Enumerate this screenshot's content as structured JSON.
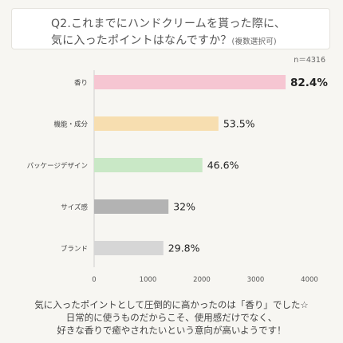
{
  "title": {
    "line1": "Q2.これまでにハンドクリームを貰った際に、",
    "line2": "気に入ったポイントはなんですか？",
    "note": "(複数選択可)"
  },
  "sample_size": "n＝4316",
  "footer": {
    "line1": "気に入ったポイントとして圧倒的に高かったのは「香り」でした☆",
    "line2": "日常的に使うものだからこそ、使用感だけでなく、",
    "line3": "好きな香りで癒やされたいという意向が高いようです！"
  },
  "chart_data": {
    "type": "bar",
    "orientation": "horizontal",
    "categories": [
      "香り",
      "機能・成分",
      "パッケージデザイン",
      "サイズ感",
      "ブランド"
    ],
    "values": [
      3556,
      2309,
      2011,
      1381,
      1286
    ],
    "value_labels": [
      "82.4%",
      "53.5%",
      "46.6%",
      "32%",
      "29.8%"
    ],
    "colors": [
      "#f6c6d2",
      "#f7deb0",
      "#c9e8c6",
      "#b3b3b3",
      "#d6d6d6"
    ],
    "xlim": [
      0,
      4000
    ],
    "xticks": [
      0,
      1000,
      2000,
      3000,
      4000
    ],
    "grid": false,
    "title": "",
    "xlabel": "",
    "ylabel": ""
  }
}
